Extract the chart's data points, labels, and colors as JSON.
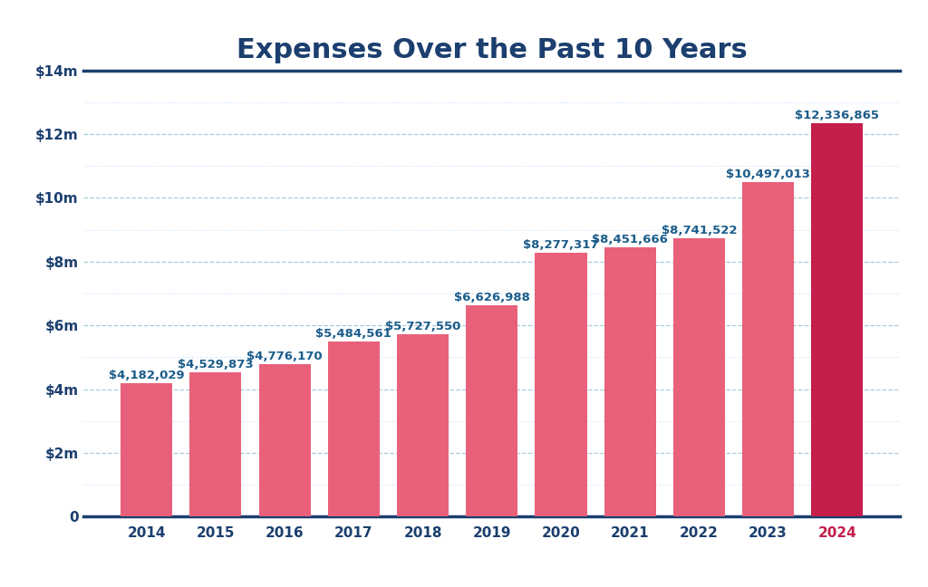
{
  "title": "Expenses Over the Past 10 Years",
  "years": [
    "2014",
    "2015",
    "2016",
    "2017",
    "2018",
    "2019",
    "2020",
    "2021",
    "2022",
    "2023",
    "2024"
  ],
  "values": [
    4182029,
    4529873,
    4776170,
    5484561,
    5727550,
    6626988,
    8277317,
    8451666,
    8741522,
    10497013,
    12336865
  ],
  "labels": [
    "$4,182,029",
    "$4,529,873",
    "$4,776,170",
    "$5,484,561",
    "$5,727,550",
    "$6,626,988",
    "$8,277,317",
    "$8,451,666",
    "$8,741,522",
    "$10,497,013",
    "$12,336,865"
  ],
  "bar_color_default": "#E8607A",
  "bar_color_highlight": "#C41E4A",
  "highlight_index": 10,
  "title_color": "#1B3F6E",
  "label_color": "#1B5C8A",
  "axis_line_color": "#1B3F6E",
  "tick_label_color": "#1B3F6E",
  "highlight_tick_color": "#C41E4A",
  "grid_color": "#AACCDD",
  "grid_color_minor": "#DDEEFF",
  "background_color": "#FFFFFF",
  "ylim": [
    0,
    14000000
  ],
  "ytick_values": [
    0,
    2000000,
    4000000,
    6000000,
    8000000,
    10000000,
    12000000,
    14000000
  ],
  "ytick_labels": [
    "0",
    "$2m",
    "$4m",
    "$6m",
    "$8m",
    "$10m",
    "$12m",
    "$14m"
  ],
  "ytick_minor_values": [
    1000000,
    3000000,
    5000000,
    7000000,
    9000000,
    11000000,
    13000000
  ],
  "title_fontsize": 22,
  "label_fontsize": 9.5,
  "tick_fontsize": 11,
  "bar_width": 0.75
}
